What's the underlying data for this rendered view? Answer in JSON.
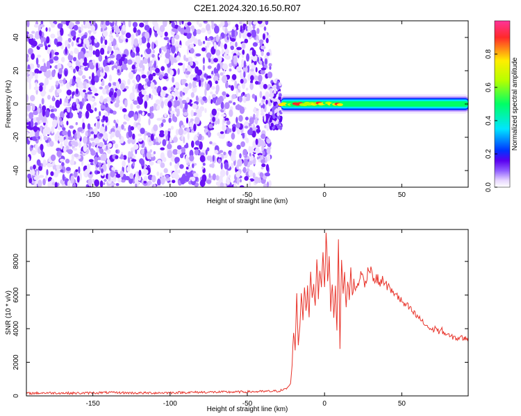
{
  "figure_title": "C2E1.2024.320.16.50.R07",
  "colors": {
    "snr_line": "#e8332a",
    "colormap": [
      "#ffffff",
      "#e8d8ff",
      "#8f5cff",
      "#5a00f0",
      "#0033ff",
      "#00e5ff",
      "#00ff66",
      "#b5ff00",
      "#ffee00",
      "#ff2a2a",
      "#ff3399"
    ]
  },
  "chart_data": [
    {
      "type": "heatmap",
      "title": "",
      "xlabel": "Height of straight line (km)",
      "ylabel": "Frequency (Hz)",
      "xlim": [
        -193,
        93
      ],
      "ylim": [
        -50,
        50
      ],
      "xticks": [
        -150,
        -100,
        -50,
        0,
        50
      ],
      "yticks": [
        -40,
        -20,
        0,
        20,
        40
      ],
      "colorbar": {
        "label": "Normalized spectral amplitude",
        "range": [
          0.0,
          1.0
        ],
        "ticks": [
          "0.0",
          "0.2",
          "0.4",
          "0.6",
          "0.8"
        ]
      },
      "regions": [
        {
          "x_range": [
            -193,
            -35
          ],
          "freq_range": [
            -50,
            50
          ],
          "description_value": "noise",
          "amplitude_range": [
            0.0,
            0.12
          ]
        },
        {
          "x_range": [
            -35,
            -28
          ],
          "freq_range": [
            -15,
            15
          ],
          "amplitude_range": [
            0.05,
            0.35
          ]
        },
        {
          "x_range": [
            -28,
            93
          ],
          "freq_center": 0,
          "freq_halfwidth": 3,
          "core_amplitude": 0.4
        },
        {
          "x_range": [
            -28,
            10
          ],
          "freq_center": 0,
          "core_amplitude": 0.9
        }
      ]
    },
    {
      "type": "line",
      "title": "",
      "xlabel": "Height of straight line (km)",
      "ylabel": "SNR (10 * v/v)",
      "xlim": [
        -193,
        93
      ],
      "ylim": [
        0,
        9900
      ],
      "xticks": [
        -150,
        -100,
        -50,
        0,
        50
      ],
      "yticks": [
        0,
        2000,
        4000,
        6000,
        8000
      ],
      "series": [
        {
          "x": [
            -193,
            -180,
            -160,
            -140,
            -120,
            -100,
            -80,
            -60,
            -40,
            -30,
            -25,
            -22,
            -21,
            -20,
            -19,
            -18,
            -17,
            -16,
            -15,
            -14,
            -13,
            -12,
            -11,
            -10,
            -9,
            -8,
            -7,
            -6,
            -5,
            -4,
            -3,
            -2,
            -1,
            0,
            1,
            2,
            3,
            4,
            5,
            6,
            7,
            8,
            9,
            10,
            11,
            12,
            13,
            14,
            15,
            16,
            17,
            18,
            19,
            20,
            22,
            24,
            26,
            28,
            30,
            32,
            34,
            36,
            38,
            40,
            42,
            44,
            46,
            48,
            50,
            52,
            54,
            56,
            58,
            60,
            62,
            64,
            66,
            68,
            70,
            72,
            74,
            76,
            78,
            80,
            82,
            84,
            86,
            88,
            90,
            93
          ],
          "values": [
            150,
            180,
            160,
            200,
            170,
            190,
            220,
            230,
            260,
            290,
            400,
            700,
            1900,
            3900,
            2800,
            5900,
            3000,
            4200,
            6100,
            4600,
            6700,
            5100,
            6300,
            4800,
            7400,
            5600,
            6800,
            5200,
            8500,
            5900,
            7600,
            6600,
            8900,
            6200,
            9800,
            7100,
            8200,
            5000,
            6900,
            4600,
            6300,
            4000,
            9600,
            2800,
            8100,
            6000,
            7200,
            5400,
            6700,
            5900,
            7500,
            5800,
            6900,
            6200,
            6800,
            7300,
            6600,
            7400,
            7700,
            6800,
            7000,
            6700,
            6900,
            6600,
            6400,
            6100,
            6200,
            5800,
            5600,
            5400,
            5300,
            5100,
            4900,
            4700,
            4600,
            4300,
            4200,
            4000,
            3900,
            4100,
            3800,
            3900,
            3700,
            3600,
            3500,
            3500,
            3400,
            3500,
            3400,
            3450
          ]
        }
      ]
    }
  ]
}
